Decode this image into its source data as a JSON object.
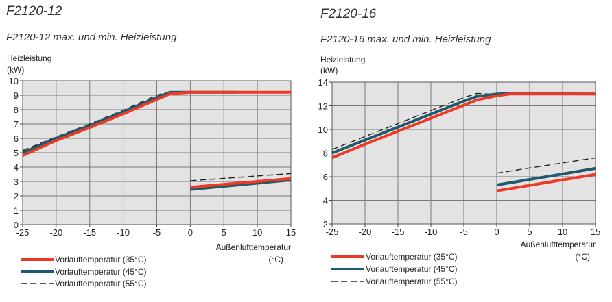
{
  "colors": {
    "plot_bg": "#e3e3e3",
    "grid": "#7a7a7a",
    "series_35": "#ee3a24",
    "series_45": "#1f5a6e",
    "series_55": "#222222"
  },
  "chart_data": [
    {
      "type": "line",
      "panel_title": "F2120-12",
      "title": "F2120-12 max. und min. Heizleistung",
      "ylabel_line1": "Heizleistung",
      "ylabel_line2": "(kW)",
      "xlabel": "Außenlufttemperatur",
      "xunit": "(°C)",
      "xlim": [
        -25,
        15
      ],
      "ylim": [
        0,
        10
      ],
      "xticks": [
        -25,
        -20,
        -15,
        -10,
        -5,
        0,
        5,
        10,
        15
      ],
      "yticks": [
        0,
        1,
        2,
        3,
        4,
        5,
        6,
        7,
        8,
        9,
        10
      ],
      "grid": true,
      "legend_position": "bottom-left",
      "series": [
        {
          "name": "Vorlauftemperatur (35°C)",
          "style": "solid",
          "segments": [
            {
              "x": [
                -25,
                -20,
                -15,
                -10,
                -5,
                -3,
                0,
                15
              ],
              "y": [
                4.8,
                5.85,
                6.75,
                7.7,
                8.7,
                9.1,
                9.2,
                9.2
              ]
            },
            {
              "x": [
                0,
                15
              ],
              "y": [
                2.6,
                3.2
              ]
            }
          ]
        },
        {
          "name": "Vorlauftemperatur (45°C)",
          "style": "solid",
          "segments": [
            {
              "x": [
                -25,
                -20,
                -15,
                -10,
                -5,
                -3,
                0,
                7
              ],
              "y": [
                5.0,
                6.0,
                6.9,
                7.85,
                8.85,
                9.2,
                9.2,
                9.2
              ]
            },
            {
              "x": [
                0,
                15
              ],
              "y": [
                2.45,
                3.1
              ]
            }
          ]
        },
        {
          "name": "Vorlauftemperatur (55°C)",
          "style": "dashed",
          "segments": [
            {
              "x": [
                -25,
                -20,
                -15,
                -10,
                -5,
                -3,
                0,
                3
              ],
              "y": [
                5.15,
                6.1,
                7.0,
                7.95,
                9.0,
                9.25,
                9.2,
                9.2
              ]
            },
            {
              "x": [
                0,
                15
              ],
              "y": [
                3.05,
                3.55
              ]
            }
          ]
        }
      ]
    },
    {
      "type": "line",
      "panel_title": "F2120-16",
      "title": "F2120-16 max. und min. Heizleistung",
      "ylabel_line1": "Heizleistung",
      "ylabel_line2": "(kW)",
      "xlabel": "Außenlufttemperatur",
      "xunit": "(°C)",
      "xlim": [
        -25,
        15
      ],
      "ylim": [
        2,
        14
      ],
      "xticks": [
        -25,
        -20,
        -15,
        -10,
        -5,
        0,
        5,
        10,
        15
      ],
      "yticks": [
        2,
        4,
        6,
        8,
        10,
        12,
        14
      ],
      "grid": true,
      "legend_position": "bottom-left",
      "series": [
        {
          "name": "Vorlauftemperatur (35°C)",
          "style": "solid",
          "segments": [
            {
              "x": [
                -25,
                -20,
                -15,
                -10,
                -5,
                -3,
                0,
                2,
                15
              ],
              "y": [
                7.6,
                8.75,
                9.85,
                10.95,
                12.05,
                12.5,
                12.85,
                13.0,
                13.0
              ]
            },
            {
              "x": [
                0,
                15
              ],
              "y": [
                4.8,
                6.2
              ]
            }
          ]
        },
        {
          "name": "Vorlauftemperatur (45°C)",
          "style": "solid",
          "segments": [
            {
              "x": [
                -25,
                -20,
                -15,
                -10,
                -5,
                -3,
                0,
                3,
                15
              ],
              "y": [
                8.0,
                9.1,
                10.2,
                11.3,
                12.4,
                12.8,
                13.0,
                13.05,
                13.0
              ]
            },
            {
              "x": [
                0,
                15
              ],
              "y": [
                5.3,
                6.7
              ]
            }
          ]
        },
        {
          "name": "Vorlauftemperatur (55°C)",
          "style": "dashed",
          "segments": [
            {
              "x": [
                -25,
                -20,
                -15,
                -10,
                -5,
                -3,
                0,
                15
              ],
              "y": [
                8.3,
                9.4,
                10.5,
                11.6,
                12.7,
                13.05,
                12.95,
                13.0
              ]
            },
            {
              "x": [
                0,
                15
              ],
              "y": [
                6.3,
                7.6
              ]
            }
          ]
        }
      ]
    }
  ]
}
